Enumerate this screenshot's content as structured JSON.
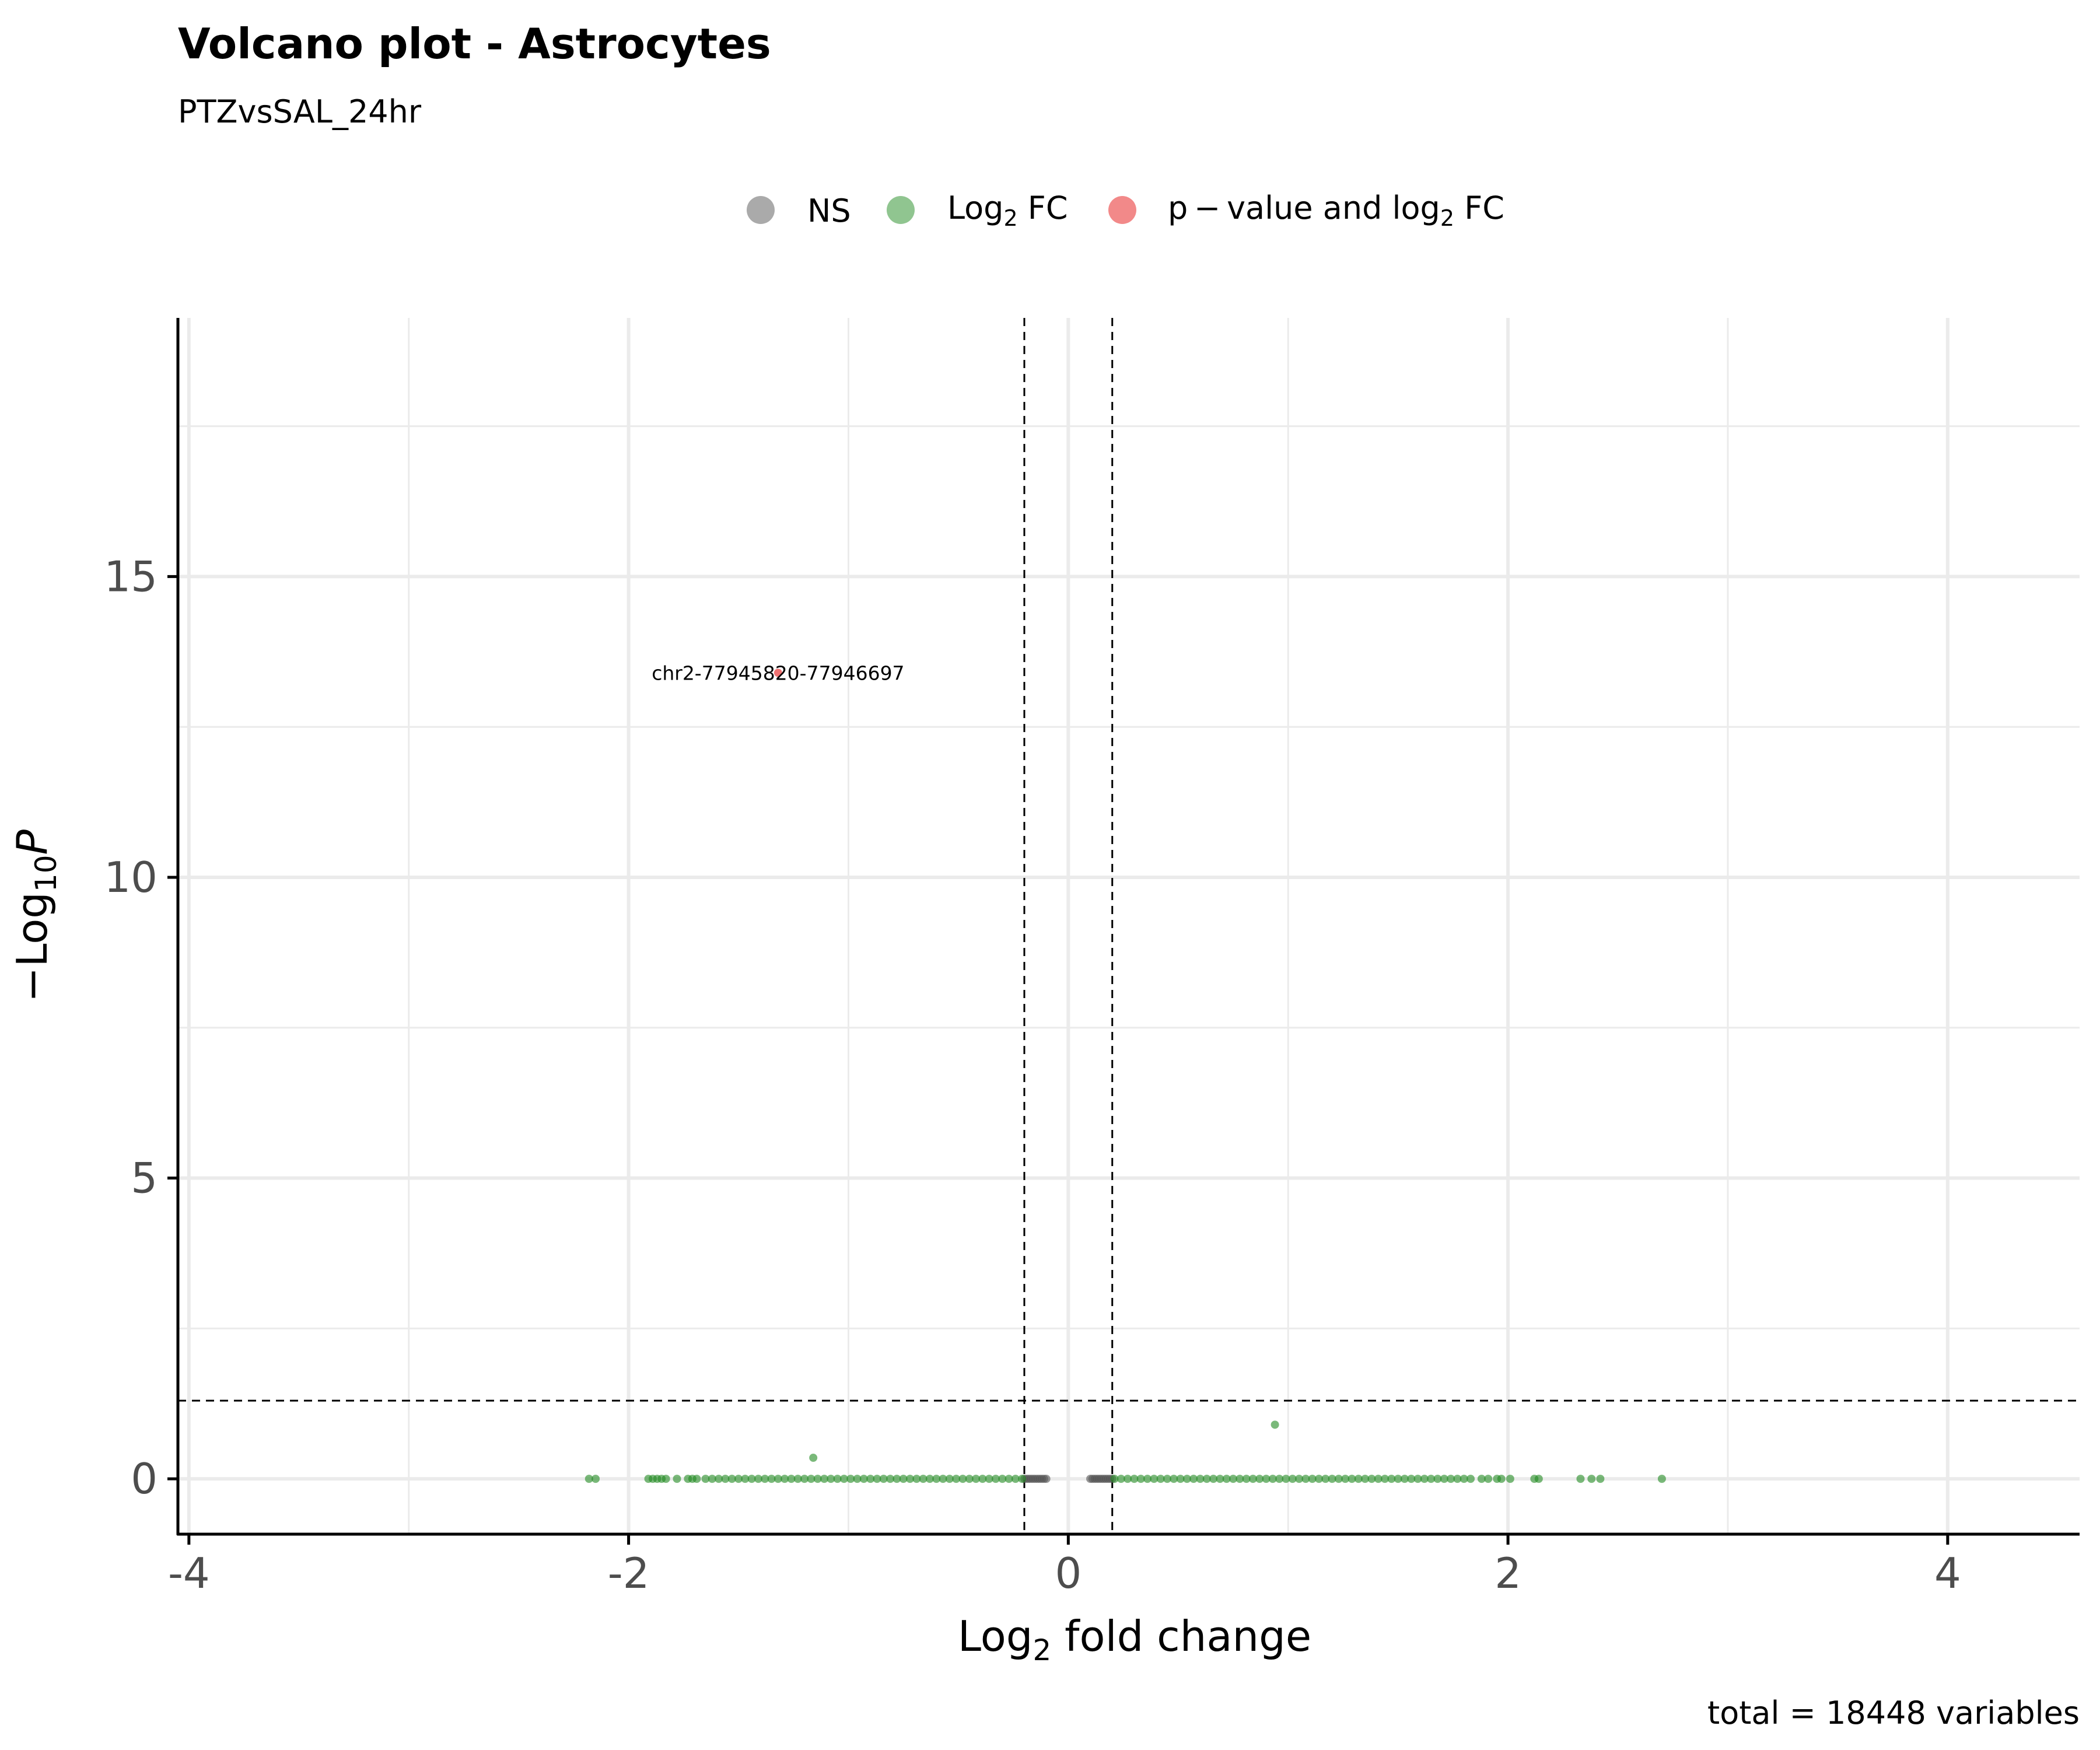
{
  "chart_data": {
    "type": "scatter",
    "title": "Volcano plot - Astrocytes",
    "subtitle": "PTZvsSAL_24hr",
    "xlabel": {
      "base": "Log",
      "sub": "2",
      "rest": " fold change"
    },
    "ylabel": {
      "prefix": "−Log",
      "sub": "10",
      "italic": "P"
    },
    "caption": "total = 18448 variables",
    "xlim": [
      -4.05,
      4.6
    ],
    "ylim": [
      -0.92,
      19.3
    ],
    "x_ticks": [
      -4,
      -2,
      0,
      2,
      4
    ],
    "x_tick_labels": [
      "-4",
      "-2",
      "0",
      "2",
      "4"
    ],
    "y_ticks": [
      0,
      5,
      10,
      15
    ],
    "y_tick_labels": [
      "0",
      "5",
      "10",
      "15"
    ],
    "x_minor": [
      -3,
      -1,
      1,
      3
    ],
    "y_minor": [
      2.5,
      7.5,
      12.5,
      17.5
    ],
    "grid": true,
    "fc_cutoffs": [
      -0.2,
      0.2
    ],
    "p_cutoff": 1.3,
    "legend": {
      "position": "top",
      "entries": [
        {
          "key": "NS",
          "label": "NS",
          "color": "#555555"
        },
        {
          "key": "FC",
          "label": {
            "base": "Log",
            "sub": "2",
            "rest": " FC"
          },
          "color": "#228B22"
        },
        {
          "key": "PFC",
          "label": {
            "pre": "p − value and log",
            "sub": "2",
            "rest": " FC"
          },
          "color": "#E51414"
        }
      ]
    },
    "series": [
      {
        "name": "NS",
        "color": "#555555",
        "points": [
          [
            -0.2,
            0
          ],
          [
            -0.19,
            0
          ],
          [
            -0.18,
            0
          ],
          [
            -0.17,
            0
          ],
          [
            -0.16,
            0
          ],
          [
            -0.15,
            0
          ],
          [
            -0.14,
            0
          ],
          [
            -0.13,
            0
          ],
          [
            -0.12,
            0
          ],
          [
            -0.11,
            0
          ],
          [
            -0.1,
            0
          ],
          [
            0.1,
            0
          ],
          [
            0.11,
            0
          ],
          [
            0.12,
            0
          ],
          [
            0.13,
            0
          ],
          [
            0.14,
            0
          ],
          [
            0.15,
            0
          ],
          [
            0.16,
            0
          ],
          [
            0.17,
            0
          ],
          [
            0.18,
            0
          ],
          [
            0.19,
            0
          ],
          [
            0.2,
            0
          ]
        ]
      },
      {
        "name": "Log2 FC",
        "color": "#228B22",
        "points": [
          [
            -2.18,
            0
          ],
          [
            -2.15,
            0
          ],
          [
            -1.91,
            0
          ],
          [
            -1.89,
            0
          ],
          [
            -1.87,
            0
          ],
          [
            -1.85,
            0
          ],
          [
            -1.83,
            0
          ],
          [
            -1.78,
            0
          ],
          [
            -1.73,
            0
          ],
          [
            -1.71,
            0
          ],
          [
            -1.69,
            0
          ],
          [
            -1.65,
            0
          ],
          [
            -1.62,
            0
          ],
          [
            -1.59,
            0
          ],
          [
            -1.56,
            0
          ],
          [
            -1.53,
            0
          ],
          [
            -1.5,
            0
          ],
          [
            -1.47,
            0
          ],
          [
            -1.44,
            0
          ],
          [
            -1.41,
            0
          ],
          [
            -1.38,
            0
          ],
          [
            -1.35,
            0
          ],
          [
            -1.32,
            0
          ],
          [
            -1.29,
            0
          ],
          [
            -1.26,
            0
          ],
          [
            -1.23,
            0
          ],
          [
            -1.2,
            0
          ],
          [
            -1.17,
            0
          ],
          [
            -1.14,
            0
          ],
          [
            -1.11,
            0
          ],
          [
            -1.08,
            0
          ],
          [
            -1.05,
            0
          ],
          [
            -1.02,
            0
          ],
          [
            -0.99,
            0
          ],
          [
            -0.96,
            0
          ],
          [
            -0.93,
            0
          ],
          [
            -0.9,
            0
          ],
          [
            -0.87,
            0
          ],
          [
            -0.84,
            0
          ],
          [
            -0.81,
            0
          ],
          [
            -0.78,
            0
          ],
          [
            -0.75,
            0
          ],
          [
            -0.72,
            0
          ],
          [
            -0.69,
            0
          ],
          [
            -0.66,
            0
          ],
          [
            -0.63,
            0
          ],
          [
            -0.6,
            0
          ],
          [
            -0.57,
            0
          ],
          [
            -0.54,
            0
          ],
          [
            -0.51,
            0
          ],
          [
            -0.48,
            0
          ],
          [
            -0.45,
            0
          ],
          [
            -0.42,
            0
          ],
          [
            -0.39,
            0
          ],
          [
            -0.36,
            0
          ],
          [
            -0.33,
            0
          ],
          [
            -0.3,
            0
          ],
          [
            -0.27,
            0
          ],
          [
            -0.24,
            0
          ],
          [
            -0.21,
            0
          ],
          [
            -1.16,
            0.35
          ],
          [
            0.21,
            0
          ],
          [
            0.24,
            0
          ],
          [
            0.27,
            0
          ],
          [
            0.3,
            0
          ],
          [
            0.33,
            0
          ],
          [
            0.36,
            0
          ],
          [
            0.39,
            0
          ],
          [
            0.42,
            0
          ],
          [
            0.45,
            0
          ],
          [
            0.48,
            0
          ],
          [
            0.51,
            0
          ],
          [
            0.54,
            0
          ],
          [
            0.57,
            0
          ],
          [
            0.6,
            0
          ],
          [
            0.63,
            0
          ],
          [
            0.66,
            0
          ],
          [
            0.69,
            0
          ],
          [
            0.72,
            0
          ],
          [
            0.75,
            0
          ],
          [
            0.78,
            0
          ],
          [
            0.81,
            0
          ],
          [
            0.84,
            0
          ],
          [
            0.87,
            0
          ],
          [
            0.9,
            0
          ],
          [
            0.93,
            0
          ],
          [
            0.96,
            0
          ],
          [
            0.99,
            0
          ],
          [
            1.02,
            0
          ],
          [
            1.05,
            0
          ],
          [
            1.08,
            0
          ],
          [
            1.11,
            0
          ],
          [
            1.14,
            0
          ],
          [
            1.17,
            0
          ],
          [
            1.2,
            0
          ],
          [
            1.23,
            0
          ],
          [
            1.26,
            0
          ],
          [
            1.29,
            0
          ],
          [
            1.32,
            0
          ],
          [
            1.35,
            0
          ],
          [
            1.38,
            0
          ],
          [
            1.41,
            0
          ],
          [
            1.44,
            0
          ],
          [
            1.47,
            0
          ],
          [
            1.5,
            0
          ],
          [
            1.53,
            0
          ],
          [
            1.56,
            0
          ],
          [
            1.59,
            0
          ],
          [
            1.62,
            0
          ],
          [
            1.65,
            0
          ],
          [
            1.68,
            0
          ],
          [
            1.71,
            0
          ],
          [
            1.74,
            0
          ],
          [
            1.77,
            0
          ],
          [
            1.8,
            0
          ],
          [
            1.83,
            0
          ],
          [
            1.88,
            0
          ],
          [
            1.91,
            0
          ],
          [
            1.95,
            0
          ],
          [
            1.97,
            0
          ],
          [
            2.01,
            0
          ],
          [
            2.12,
            0
          ],
          [
            2.14,
            0
          ],
          [
            2.33,
            0
          ],
          [
            2.38,
            0
          ],
          [
            2.42,
            0
          ],
          [
            2.7,
            0
          ],
          [
            0.94,
            0.9
          ]
        ]
      },
      {
        "name": "p-value and log2 FC",
        "color": "#E51414",
        "points": [
          [
            -1.32,
            13.4
          ]
        ],
        "labels": [
          "chr2-77945820-77946697"
        ]
      }
    ]
  }
}
